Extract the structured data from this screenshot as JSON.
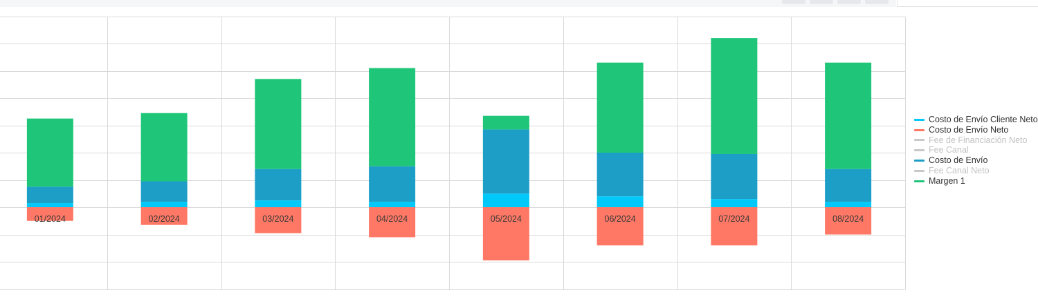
{
  "toolbar": {
    "buttons": [
      {
        "icon": "toolbar-button-1"
      },
      {
        "icon": "toolbar-button-2"
      },
      {
        "icon": "toolbar-button-3"
      },
      {
        "icon": "toolbar-button-4"
      }
    ]
  },
  "chart_data": {
    "type": "bar",
    "stacked": true,
    "title": "",
    "xlabel": "",
    "ylabel": "",
    "ylim": [
      -3,
      7
    ],
    "grid": true,
    "categories": [
      "01/2024",
      "02/2024",
      "03/2024",
      "04/2024",
      "05/2024",
      "06/2024",
      "07/2024",
      "08/2024"
    ],
    "series": [
      {
        "name": "Costo de Envío Cliente Neto",
        "color": "#00c8f8",
        "values": [
          0.15,
          0.2,
          0.25,
          0.2,
          0.5,
          0.4,
          0.3,
          0.2
        ],
        "hidden": false
      },
      {
        "name": "Costo de Envío Neto",
        "color": "#ff7865",
        "values": [
          -0.5,
          -0.65,
          -0.95,
          -1.1,
          -1.95,
          -1.4,
          -1.4,
          -1.0
        ],
        "hidden": false
      },
      {
        "name": "Fee de Financiación Neto",
        "color": "#c8c8c8",
        "values": [
          0,
          0,
          0,
          0,
          0,
          0,
          0,
          0
        ],
        "hidden": true
      },
      {
        "name": "Fee Canal",
        "color": "#c8c8c8",
        "values": [
          0,
          0,
          0,
          0,
          0,
          0,
          0,
          0
        ],
        "hidden": true
      },
      {
        "name": "Costo de Envío",
        "color": "#1d9ec6",
        "values": [
          0.6,
          0.75,
          1.15,
          1.3,
          2.35,
          1.6,
          1.65,
          1.2
        ],
        "hidden": false
      },
      {
        "name": "Fee Canal Neto",
        "color": "#c8c8c8",
        "values": [
          0,
          0,
          0,
          0,
          0,
          0,
          0,
          0
        ],
        "hidden": true
      },
      {
        "name": "Margen 1",
        "color": "#1fc67a",
        "values": [
          2.5,
          2.5,
          3.3,
          3.6,
          0.5,
          3.3,
          4.25,
          3.9
        ],
        "hidden": false
      }
    ],
    "legend": "right"
  }
}
